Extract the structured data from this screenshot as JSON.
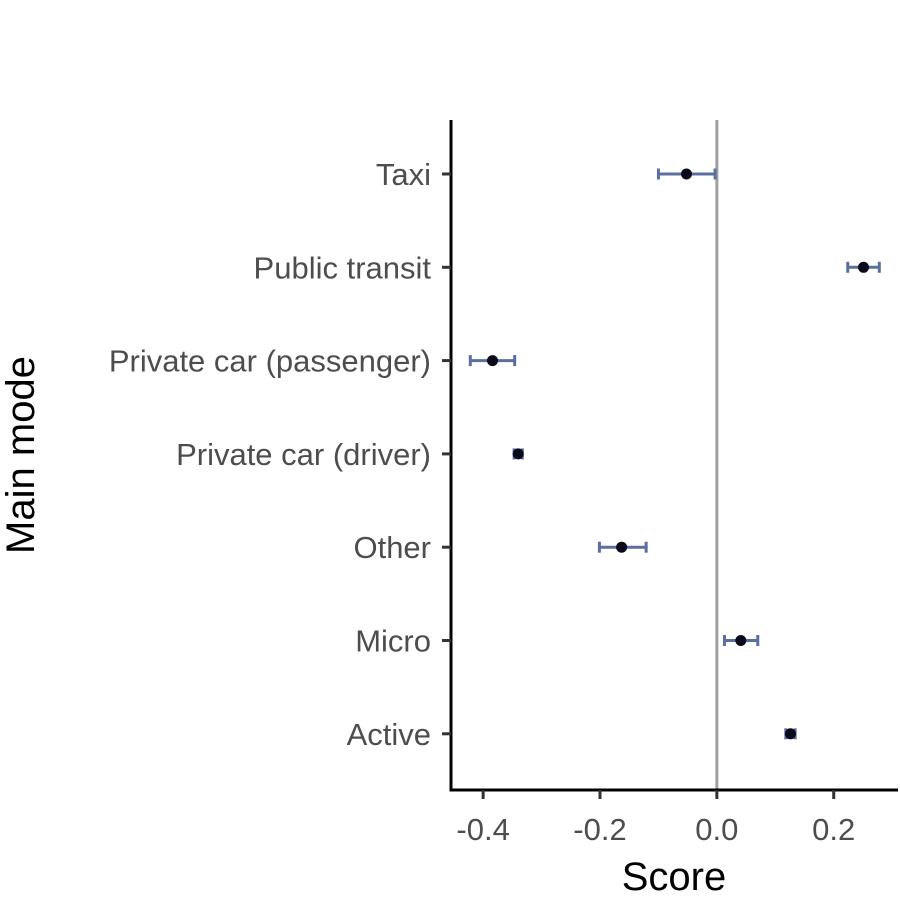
{
  "chart_data": {
    "type": "scatter",
    "xlabel": "Score",
    "ylabel": "Main mode",
    "xlim": [
      -0.455,
      0.31
    ],
    "x_ticks": [
      -0.4,
      -0.2,
      0.0,
      0.2
    ],
    "x_tick_labels": [
      "-0.4",
      "-0.2",
      "0.0",
      "0.2"
    ],
    "reference_line_x": 0,
    "categories": [
      "Active",
      "Micro",
      "Other",
      "Private car (driver)",
      "Private car (passenger)",
      "Public transit",
      "Taxi"
    ],
    "points": [
      {
        "category": "Active",
        "value": 0.126,
        "low": 0.118,
        "high": 0.134
      },
      {
        "category": "Micro",
        "value": 0.041,
        "low": 0.013,
        "high": 0.07
      },
      {
        "category": "Other",
        "value": -0.163,
        "low": -0.201,
        "high": -0.121
      },
      {
        "category": "Private car (driver)",
        "value": -0.34,
        "low": -0.347,
        "high": -0.333
      },
      {
        "category": "Private car (passenger)",
        "value": -0.384,
        "low": -0.422,
        "high": -0.346
      },
      {
        "category": "Public transit",
        "value": 0.251,
        "low": 0.224,
        "high": 0.278
      },
      {
        "category": "Taxi",
        "value": -0.052,
        "low": -0.1,
        "high": -0.003
      }
    ],
    "grid": false,
    "legend": "none",
    "colors": {
      "errorbar": "#5a6fa0",
      "point": "#0a0a1a",
      "reference": "#a0a0a0",
      "axis": "#000000"
    }
  }
}
